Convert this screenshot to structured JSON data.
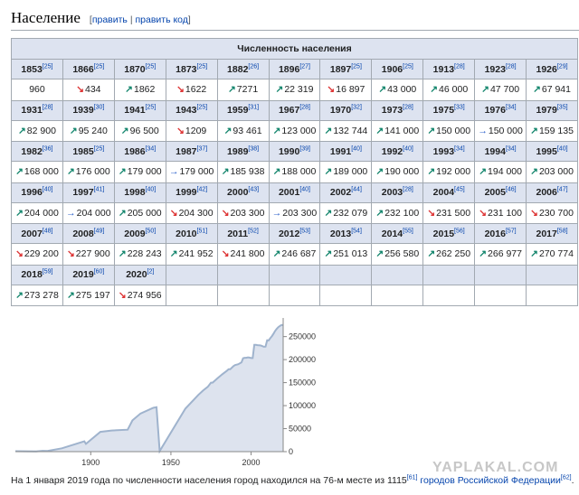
{
  "section": {
    "title": "Население",
    "edit": "править",
    "edit_code": "править код",
    "open": "[",
    "sep": " | ",
    "close": "]"
  },
  "table": {
    "caption": "Численность населения",
    "rows": [
      [
        {
          "y": "1853",
          "r": "[25]",
          "v": "960",
          "d": ""
        },
        {
          "y": "1866",
          "r": "[25]",
          "v": "434",
          "d": "down"
        },
        {
          "y": "1870",
          "r": "[25]",
          "v": "1862",
          "d": "up"
        },
        {
          "y": "1873",
          "r": "[25]",
          "v": "1622",
          "d": "down"
        },
        {
          "y": "1882",
          "r": "[26]",
          "v": "7271",
          "d": "up"
        },
        {
          "y": "1896",
          "r": "[27]",
          "v": "22 319",
          "d": "up"
        },
        {
          "y": "1897",
          "r": "[25]",
          "v": "16 897",
          "d": "down"
        },
        {
          "y": "1906",
          "r": "[25]",
          "v": "43 000",
          "d": "up"
        },
        {
          "y": "1913",
          "r": "[28]",
          "v": "46 000",
          "d": "up"
        },
        {
          "y": "1923",
          "r": "[28]",
          "v": "47 700",
          "d": "up"
        },
        {
          "y": "1926",
          "r": "[29]",
          "v": "67 941",
          "d": "up"
        }
      ],
      [
        {
          "y": "1931",
          "r": "[28]",
          "v": "82 900",
          "d": "up"
        },
        {
          "y": "1939",
          "r": "[30]",
          "v": "95 240",
          "d": "up"
        },
        {
          "y": "1941",
          "r": "[25]",
          "v": "96 500",
          "d": "up"
        },
        {
          "y": "1943",
          "r": "[25]",
          "v": "1209",
          "d": "down"
        },
        {
          "y": "1959",
          "r": "[31]",
          "v": "93 461",
          "d": "up"
        },
        {
          "y": "1967",
          "r": "[28]",
          "v": "123 000",
          "d": "up"
        },
        {
          "y": "1970",
          "r": "[32]",
          "v": "132 744",
          "d": "up"
        },
        {
          "y": "1973",
          "r": "[28]",
          "v": "141 000",
          "d": "up"
        },
        {
          "y": "1975",
          "r": "[33]",
          "v": "150 000",
          "d": "up"
        },
        {
          "y": "1976",
          "r": "[34]",
          "v": "150 000",
          "d": "flat"
        },
        {
          "y": "1979",
          "r": "[35]",
          "v": "159 135",
          "d": "up"
        }
      ],
      [
        {
          "y": "1982",
          "r": "[36]",
          "v": "168 000",
          "d": "up"
        },
        {
          "y": "1985",
          "r": "[25]",
          "v": "176 000",
          "d": "up"
        },
        {
          "y": "1986",
          "r": "[34]",
          "v": "179 000",
          "d": "up"
        },
        {
          "y": "1987",
          "r": "[37]",
          "v": "179 000",
          "d": "flat"
        },
        {
          "y": "1989",
          "r": "[38]",
          "v": "185 938",
          "d": "up"
        },
        {
          "y": "1990",
          "r": "[39]",
          "v": "188 000",
          "d": "up"
        },
        {
          "y": "1991",
          "r": "[40]",
          "v": "189 000",
          "d": "up"
        },
        {
          "y": "1992",
          "r": "[40]",
          "v": "190 000",
          "d": "up"
        },
        {
          "y": "1993",
          "r": "[34]",
          "v": "192 000",
          "d": "up"
        },
        {
          "y": "1994",
          "r": "[34]",
          "v": "194 000",
          "d": "up"
        },
        {
          "y": "1995",
          "r": "[40]",
          "v": "203 000",
          "d": "up"
        }
      ],
      [
        {
          "y": "1996",
          "r": "[40]",
          "v": "204 000",
          "d": "up"
        },
        {
          "y": "1997",
          "r": "[41]",
          "v": "204 000",
          "d": "flat"
        },
        {
          "y": "1998",
          "r": "[40]",
          "v": "205 000",
          "d": "up"
        },
        {
          "y": "1999",
          "r": "[42]",
          "v": "204 300",
          "d": "down"
        },
        {
          "y": "2000",
          "r": "[43]",
          "v": "203 300",
          "d": "down"
        },
        {
          "y": "2001",
          "r": "[40]",
          "v": "203 300",
          "d": "flat"
        },
        {
          "y": "2002",
          "r": "[44]",
          "v": "232 079",
          "d": "up"
        },
        {
          "y": "2003",
          "r": "[28]",
          "v": "232 100",
          "d": "up"
        },
        {
          "y": "2004",
          "r": "[45]",
          "v": "231 500",
          "d": "down"
        },
        {
          "y": "2005",
          "r": "[46]",
          "v": "231 100",
          "d": "down"
        },
        {
          "y": "2006",
          "r": "[47]",
          "v": "230 700",
          "d": "down"
        }
      ],
      [
        {
          "y": "2007",
          "r": "[48]",
          "v": "229 200",
          "d": "down"
        },
        {
          "y": "2008",
          "r": "[49]",
          "v": "227 900",
          "d": "down"
        },
        {
          "y": "2009",
          "r": "[50]",
          "v": "228 243",
          "d": "up"
        },
        {
          "y": "2010",
          "r": "[51]",
          "v": "241 952",
          "d": "up"
        },
        {
          "y": "2011",
          "r": "[52]",
          "v": "241 800",
          "d": "down"
        },
        {
          "y": "2012",
          "r": "[53]",
          "v": "246 687",
          "d": "up"
        },
        {
          "y": "2013",
          "r": "[54]",
          "v": "251 013",
          "d": "up"
        },
        {
          "y": "2014",
          "r": "[55]",
          "v": "256 580",
          "d": "up"
        },
        {
          "y": "2015",
          "r": "[56]",
          "v": "262 250",
          "d": "up"
        },
        {
          "y": "2016",
          "r": "[57]",
          "v": "266 977",
          "d": "up"
        },
        {
          "y": "2017",
          "r": "[58]",
          "v": "270 774",
          "d": "up"
        }
      ],
      [
        {
          "y": "2018",
          "r": "[59]",
          "v": "273 278",
          "d": "up"
        },
        {
          "y": "2019",
          "r": "[60]",
          "v": "275 197",
          "d": "up"
        },
        {
          "y": "2020",
          "r": "[2]",
          "v": "274 956",
          "d": "down"
        },
        {
          "y": "",
          "r": "",
          "v": "",
          "d": ""
        },
        {
          "y": "",
          "r": "",
          "v": "",
          "d": ""
        },
        {
          "y": "",
          "r": "",
          "v": "",
          "d": ""
        },
        {
          "y": "",
          "r": "",
          "v": "",
          "d": ""
        },
        {
          "y": "",
          "r": "",
          "v": "",
          "d": ""
        },
        {
          "y": "",
          "r": "",
          "v": "",
          "d": ""
        },
        {
          "y": "",
          "r": "",
          "v": "",
          "d": ""
        },
        {
          "y": "",
          "r": "",
          "v": "",
          "d": ""
        }
      ]
    ]
  },
  "chart_data": {
    "type": "area",
    "x": [
      1853,
      1866,
      1870,
      1873,
      1882,
      1896,
      1897,
      1906,
      1913,
      1923,
      1926,
      1931,
      1939,
      1941,
      1943,
      1959,
      1967,
      1970,
      1973,
      1975,
      1976,
      1979,
      1982,
      1985,
      1986,
      1987,
      1989,
      1990,
      1991,
      1992,
      1993,
      1994,
      1995,
      1996,
      1997,
      1998,
      1999,
      2000,
      2001,
      2002,
      2003,
      2004,
      2005,
      2006,
      2007,
      2008,
      2009,
      2010,
      2011,
      2012,
      2013,
      2014,
      2015,
      2016,
      2017,
      2018,
      2019,
      2020
    ],
    "values": [
      960,
      434,
      1862,
      1622,
      7271,
      22319,
      16897,
      43000,
      46000,
      47700,
      67941,
      82900,
      95240,
      96500,
      1209,
      93461,
      123000,
      132744,
      141000,
      150000,
      150000,
      159135,
      168000,
      176000,
      179000,
      179000,
      185938,
      188000,
      189000,
      190000,
      192000,
      194000,
      203000,
      204000,
      204000,
      205000,
      204300,
      203300,
      203300,
      232079,
      232100,
      231500,
      231100,
      230700,
      229200,
      227900,
      228243,
      241952,
      241800,
      246687,
      251013,
      256580,
      262250,
      266977,
      270774,
      273278,
      275197,
      274956
    ],
    "xticks": [
      "1900",
      "1950",
      "2000"
    ],
    "yticks": [
      "0",
      "50000",
      "100000",
      "150000",
      "200000",
      "250000"
    ],
    "xlim": [
      1853,
      2020
    ],
    "ylim": [
      0,
      275197
    ],
    "colors": {
      "fill": "#dde3ee",
      "line": "#9fb3cd"
    }
  },
  "footer": {
    "text": "На 1 января 2019 года по численности населения город находился на 76-м месте из 1115",
    "ref1": "[61]",
    "link": "городов Российской Федерации",
    "ref2": "[62]",
    "end": "."
  },
  "watermark": "YAPLAKAL.COM"
}
